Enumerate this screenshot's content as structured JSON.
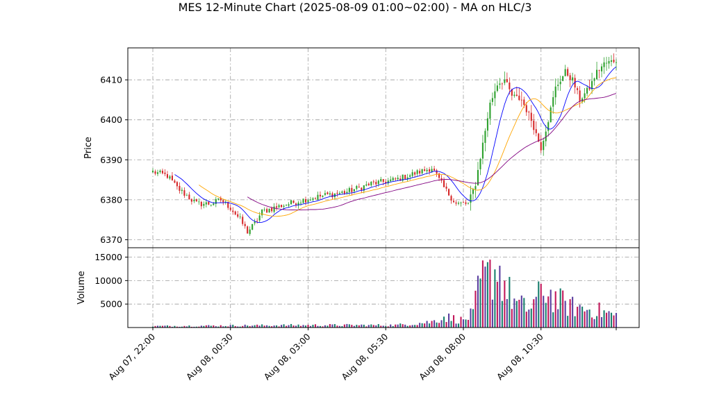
{
  "chart_data": {
    "type": "candlestick",
    "title": "MES 12-Minute Chart (2025-08-09 01:00~02:00) - MA on HLC/3",
    "price_panel": {
      "ylabel": "Price",
      "ylim": [
        6368,
        6418
      ],
      "yticks": [
        "6370",
        "6380",
        "6390",
        "6400",
        "6410"
      ],
      "up_color": "#2ca02c",
      "down_color": "#d62728",
      "ma_series": [
        {
          "color": "#0000ff",
          "role": "short"
        },
        {
          "color": "#ffa500",
          "role": "medium"
        },
        {
          "color": "#800080",
          "role": "long"
        }
      ],
      "price_path_anchors": [
        [
          0,
          6387
        ],
        [
          6,
          6386
        ],
        [
          10,
          6383
        ],
        [
          14,
          6381
        ],
        [
          18,
          6379
        ],
        [
          24,
          6379
        ],
        [
          28,
          6380
        ],
        [
          32,
          6378
        ],
        [
          36,
          6375
        ],
        [
          39,
          6372
        ],
        [
          42,
          6374
        ],
        [
          45,
          6377
        ],
        [
          50,
          6378
        ],
        [
          56,
          6379
        ],
        [
          62,
          6380
        ],
        [
          70,
          6381
        ],
        [
          80,
          6382
        ],
        [
          90,
          6384
        ],
        [
          100,
          6385
        ],
        [
          110,
          6387
        ],
        [
          115,
          6388
        ],
        [
          120,
          6383
        ],
        [
          125,
          6379
        ],
        [
          130,
          6379
        ],
        [
          133,
          6384
        ],
        [
          136,
          6394
        ],
        [
          139,
          6404
        ],
        [
          142,
          6409
        ],
        [
          145,
          6410
        ],
        [
          148,
          6406
        ],
        [
          152,
          6405
        ],
        [
          156,
          6400
        ],
        [
          160,
          6393
        ],
        [
          163,
          6400
        ],
        [
          166,
          6408
        ],
        [
          170,
          6412
        ],
        [
          173,
          6410
        ],
        [
          176,
          6405
        ],
        [
          180,
          6408
        ],
        [
          183,
          6412
        ],
        [
          186,
          6414
        ],
        [
          191,
          6415
        ]
      ],
      "ma_shape_note": "three smoothed moving-average lines of typical price"
    },
    "volume_panel": {
      "ylabel": "Volume",
      "ylim": [
        0,
        17000
      ],
      "yticks": [
        "5000",
        "10000",
        "15000"
      ],
      "volume_anchors": [
        [
          0,
          300
        ],
        [
          60,
          500
        ],
        [
          100,
          500
        ],
        [
          115,
          1200
        ],
        [
          120,
          2300
        ],
        [
          128,
          1500
        ],
        [
          132,
          3000
        ],
        [
          135,
          9500
        ],
        [
          139,
          11000
        ],
        [
          142,
          13000
        ],
        [
          146,
          8000
        ],
        [
          150,
          5000
        ],
        [
          155,
          4000
        ],
        [
          158,
          6000
        ],
        [
          162,
          8000
        ],
        [
          166,
          6000
        ],
        [
          172,
          4500
        ],
        [
          178,
          4000
        ],
        [
          184,
          3500
        ],
        [
          191,
          2500
        ]
      ],
      "bar_colors": [
        "#1a7f6e",
        "#c2185b",
        "#5b3fa0"
      ]
    },
    "x_axis": {
      "ticks": [
        {
          "label": "Aug 07, 22:00",
          "bar": 0
        },
        {
          "label": "Aug 08, 00:30",
          "bar": 32
        },
        {
          "label": "Aug 08, 03:00",
          "bar": 64
        },
        {
          "label": "Aug 08, 05:30",
          "bar": 96
        },
        {
          "label": "Aug 08, 08:00",
          "bar": 128
        },
        {
          "label": "Aug 08, 10:30",
          "bar": 160
        },
        {
          "label": "",
          "bar": 191
        }
      ],
      "n_bars": 192
    },
    "grid": true,
    "grid_style": "dashdot"
  }
}
